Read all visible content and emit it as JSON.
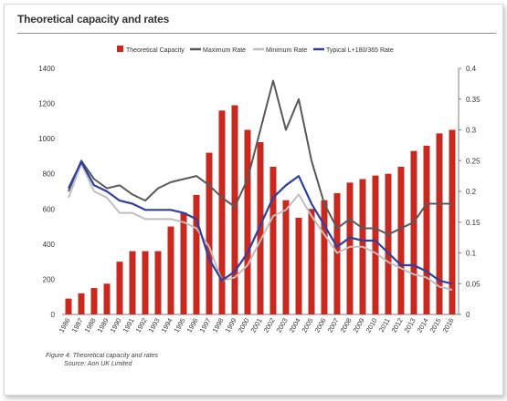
{
  "title": "Theoretical capacity and rates",
  "caption": {
    "figure": "Figure 4: Theoretical capacity and rates",
    "source": "Source: Aon UK Limited"
  },
  "colors": {
    "bar": "#c9281f",
    "maximum": "#595959",
    "minimum": "#bfbfbf",
    "typical": "#2f3f9e"
  },
  "chart_data": {
    "type": "bar",
    "categories": [
      "1986",
      "1987",
      "1988",
      "1989",
      "1990",
      "1991",
      "1992",
      "1993",
      "1994",
      "1995",
      "1996",
      "1997",
      "1998",
      "1999",
      "2000",
      "2001",
      "2002",
      "2003",
      "2004",
      "2005",
      "2006",
      "2007",
      "2008",
      "2009",
      "2010",
      "2011",
      "2012",
      "2013",
      "2014",
      "2015",
      "2016"
    ],
    "series": [
      {
        "name": "Theoretical Capacity",
        "type": "bar",
        "axis": "left",
        "values": [
          90,
          120,
          150,
          175,
          300,
          360,
          360,
          360,
          500,
          580,
          680,
          920,
          1160,
          1190,
          1050,
          980,
          840,
          650,
          550,
          600,
          650,
          690,
          750,
          770,
          790,
          800,
          840,
          930,
          960,
          1030,
          1050
        ]
      },
      {
        "name": "Maximum Rate",
        "type": "line",
        "axis": "right",
        "values": [
          0.2,
          0.25,
          0.22,
          0.205,
          0.21,
          0.195,
          0.185,
          0.205,
          0.215,
          0.22,
          0.225,
          0.21,
          0.19,
          0.175,
          0.22,
          0.3,
          0.38,
          0.3,
          0.35,
          0.25,
          0.18,
          0.14,
          0.155,
          0.14,
          0.14,
          0.13,
          0.14,
          0.15,
          0.18,
          0.18,
          0.18
        ]
      },
      {
        "name": "Minimum Rate",
        "type": "line",
        "axis": "right",
        "values": [
          0.19,
          0.245,
          0.2,
          0.19,
          0.165,
          0.165,
          0.155,
          0.155,
          0.155,
          0.15,
          0.14,
          0.11,
          0.055,
          0.06,
          0.08,
          0.12,
          0.16,
          0.17,
          0.195,
          0.16,
          0.13,
          0.1,
          0.11,
          0.11,
          0.1,
          0.085,
          0.075,
          0.065,
          0.06,
          0.045,
          0.04
        ]
      },
      {
        "name": "Typical L+180/365 Rate",
        "type": "line",
        "axis": "right",
        "values": [
          0.205,
          0.248,
          0.21,
          0.2,
          0.185,
          0.18,
          0.17,
          0.17,
          0.17,
          0.165,
          0.155,
          0.09,
          0.055,
          0.07,
          0.1,
          0.145,
          0.19,
          0.21,
          0.225,
          0.18,
          0.145,
          0.11,
          0.125,
          0.12,
          0.12,
          0.1,
          0.08,
          0.08,
          0.07,
          0.055,
          0.05
        ]
      }
    ],
    "y_left": {
      "min": 0,
      "max": 1400,
      "ticks": [
        0,
        200,
        400,
        600,
        800,
        1000,
        1200,
        1400
      ]
    },
    "y_right": {
      "min": 0,
      "max": 0.4,
      "ticks": [
        0,
        0.05,
        0.1,
        0.15,
        0.2,
        0.25,
        0.3,
        0.35,
        0.4
      ]
    },
    "right_tick_labels": [
      "0",
      "0.05",
      "0.1",
      "0.15",
      "0.2",
      "0.25",
      "0.3",
      "0.35",
      "0.4"
    ],
    "legend_position": "top",
    "grid": false
  }
}
